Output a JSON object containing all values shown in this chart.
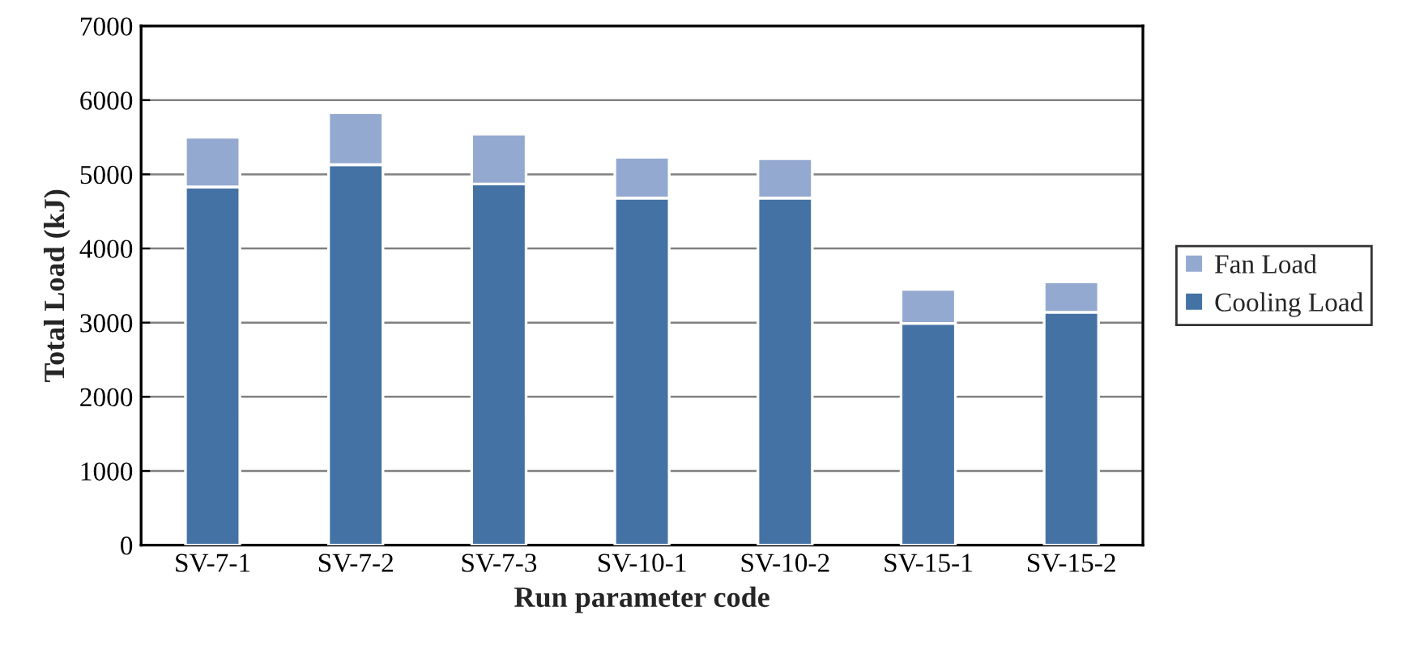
{
  "chart_data": {
    "type": "bar",
    "stacked": true,
    "xlabel": "Run parameter code",
    "ylabel": "Total Load (kJ)",
    "categories": [
      "SV-7-1",
      "SV-7-2",
      "SV-7-3",
      "SV-10-1",
      "SV-10-2",
      "SV-15-1",
      "SV-15-2"
    ],
    "series": [
      {
        "name": "Cooling Load",
        "color": "#4472a4",
        "values": [
          4830,
          5130,
          4870,
          4680,
          4680,
          2990,
          3140
        ]
      },
      {
        "name": "Fan Load",
        "color": "#94a9d0",
        "values": [
          670,
          700,
          670,
          550,
          530,
          460,
          410
        ]
      }
    ],
    "ylim": [
      0,
      7000
    ],
    "yticks": [
      0,
      1000,
      2000,
      3000,
      4000,
      5000,
      6000,
      7000
    ],
    "grid": "y",
    "legend": "right"
  }
}
